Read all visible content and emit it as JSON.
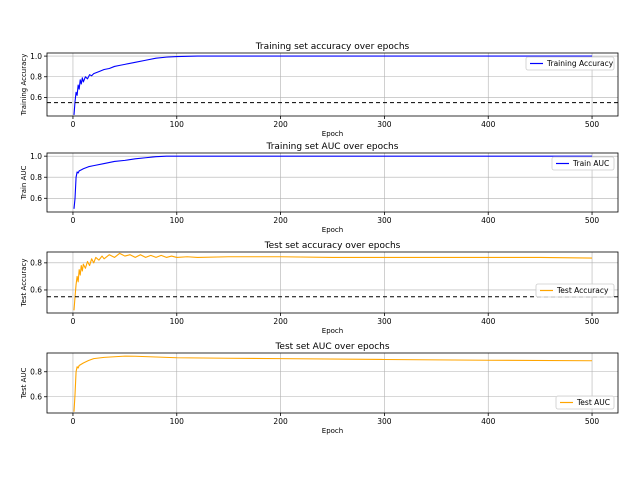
{
  "chart_data": [
    {
      "type": "line",
      "title": "Training set accuracy over epochs",
      "xlabel": "Epoch",
      "ylabel": "Training Accuracy",
      "xlim": [
        -25,
        525
      ],
      "ylim": [
        0.42,
        1.03
      ],
      "xticks": [
        0,
        100,
        200,
        300,
        400,
        500
      ],
      "yticks": [
        0.6,
        0.8,
        1.0
      ],
      "grid": true,
      "legend_position": "upper-right",
      "reference_line": 0.55,
      "series": [
        {
          "name": "Training Accuracy",
          "color": "#0000ff",
          "x": [
            1,
            2,
            3,
            4,
            5,
            6,
            7,
            8,
            9,
            10,
            12,
            14,
            16,
            18,
            20,
            25,
            30,
            35,
            40,
            45,
            50,
            60,
            70,
            80,
            90,
            100,
            120,
            150,
            200,
            300,
            400,
            500
          ],
          "y": [
            0.43,
            0.56,
            0.65,
            0.62,
            0.72,
            0.68,
            0.77,
            0.73,
            0.79,
            0.75,
            0.8,
            0.78,
            0.82,
            0.81,
            0.83,
            0.85,
            0.87,
            0.88,
            0.9,
            0.91,
            0.92,
            0.94,
            0.96,
            0.98,
            0.99,
            0.995,
            1.0,
            1.0,
            1.0,
            1.0,
            1.0,
            1.0
          ]
        }
      ]
    },
    {
      "type": "line",
      "title": "Training set AUC over epochs",
      "xlabel": "Epoch",
      "ylabel": "Train AUC",
      "xlim": [
        -25,
        525
      ],
      "ylim": [
        0.47,
        1.03
      ],
      "xticks": [
        0,
        100,
        200,
        300,
        400,
        500
      ],
      "yticks": [
        0.6,
        0.8,
        1.0
      ],
      "grid": true,
      "legend_position": "upper-right",
      "series": [
        {
          "name": "Train AUC",
          "color": "#0000ff",
          "x": [
            1,
            2,
            3,
            4,
            5,
            6,
            8,
            10,
            15,
            20,
            30,
            40,
            50,
            60,
            70,
            80,
            90,
            100,
            150,
            200,
            300,
            400,
            500
          ],
          "y": [
            0.5,
            0.6,
            0.8,
            0.85,
            0.84,
            0.86,
            0.87,
            0.88,
            0.9,
            0.91,
            0.93,
            0.95,
            0.96,
            0.975,
            0.985,
            0.995,
            1.0,
            1.0,
            1.0,
            1.0,
            1.0,
            1.0,
            1.0
          ]
        }
      ]
    },
    {
      "type": "line",
      "title": "Test set accuracy over epochs",
      "xlabel": "Epoch",
      "ylabel": "Test Accuracy",
      "xlim": [
        -25,
        525
      ],
      "ylim": [
        0.43,
        0.88
      ],
      "xticks": [
        0,
        100,
        200,
        300,
        400,
        500
      ],
      "yticks": [
        0.6,
        0.8
      ],
      "grid": true,
      "legend_position": "center-right",
      "reference_line": 0.55,
      "series": [
        {
          "name": "Test Accuracy",
          "color": "#ffa500",
          "x": [
            1,
            2,
            3,
            4,
            5,
            6,
            7,
            8,
            9,
            10,
            12,
            14,
            16,
            18,
            20,
            22,
            25,
            28,
            30,
            35,
            40,
            45,
            50,
            55,
            60,
            65,
            70,
            75,
            80,
            85,
            90,
            95,
            100,
            110,
            120,
            150,
            200,
            250,
            300,
            350,
            400,
            450,
            500
          ],
          "y": [
            0.45,
            0.55,
            0.64,
            0.7,
            0.66,
            0.75,
            0.71,
            0.78,
            0.74,
            0.79,
            0.76,
            0.81,
            0.78,
            0.83,
            0.8,
            0.84,
            0.82,
            0.85,
            0.83,
            0.86,
            0.84,
            0.87,
            0.85,
            0.86,
            0.84,
            0.86,
            0.84,
            0.855,
            0.84,
            0.855,
            0.84,
            0.85,
            0.84,
            0.845,
            0.84,
            0.845,
            0.845,
            0.84,
            0.84,
            0.84,
            0.84,
            0.84,
            0.835
          ]
        }
      ]
    },
    {
      "type": "line",
      "title": "Test set AUC over epochs",
      "xlabel": "Epoch",
      "ylabel": "Test AUC",
      "xlim": [
        -25,
        525
      ],
      "ylim": [
        0.47,
        0.95
      ],
      "xticks": [
        0,
        100,
        200,
        300,
        400,
        500
      ],
      "yticks": [
        0.6,
        0.8
      ],
      "grid": true,
      "legend_position": "lower-right",
      "series": [
        {
          "name": "Test AUC",
          "color": "#ffa500",
          "x": [
            1,
            2,
            3,
            4,
            5,
            6,
            8,
            10,
            15,
            20,
            30,
            40,
            50,
            60,
            80,
            100,
            150,
            200,
            300,
            400,
            500
          ],
          "y": [
            0.48,
            0.62,
            0.8,
            0.84,
            0.83,
            0.85,
            0.86,
            0.87,
            0.89,
            0.905,
            0.915,
            0.92,
            0.925,
            0.924,
            0.918,
            0.912,
            0.908,
            0.905,
            0.898,
            0.892,
            0.888
          ]
        }
      ]
    }
  ]
}
